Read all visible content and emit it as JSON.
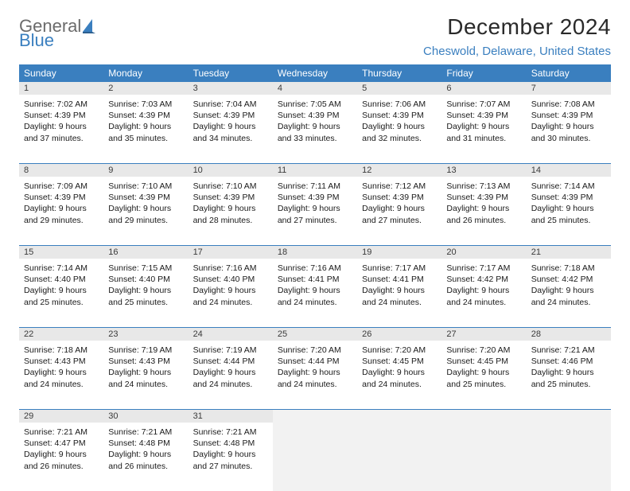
{
  "logo": {
    "line1": "General",
    "line2": "Blue"
  },
  "title": "December 2024",
  "location": "Cheswold, Delaware, United States",
  "weekdays": [
    "Sunday",
    "Monday",
    "Tuesday",
    "Wednesday",
    "Thursday",
    "Friday",
    "Saturday"
  ],
  "colors": {
    "header_bar": "#3a7fbf",
    "daynum_bg": "#e8e8e8",
    "empty_bg": "#f2f2f2",
    "text": "#1a1a1a",
    "logo_gray": "#6b6b6b",
    "logo_blue": "#3a7fbf"
  },
  "weeks": [
    [
      {
        "n": "1",
        "sunrise": "Sunrise: 7:02 AM",
        "sunset": "Sunset: 4:39 PM",
        "daylight": "Daylight: 9 hours and 37 minutes."
      },
      {
        "n": "2",
        "sunrise": "Sunrise: 7:03 AM",
        "sunset": "Sunset: 4:39 PM",
        "daylight": "Daylight: 9 hours and 35 minutes."
      },
      {
        "n": "3",
        "sunrise": "Sunrise: 7:04 AM",
        "sunset": "Sunset: 4:39 PM",
        "daylight": "Daylight: 9 hours and 34 minutes."
      },
      {
        "n": "4",
        "sunrise": "Sunrise: 7:05 AM",
        "sunset": "Sunset: 4:39 PM",
        "daylight": "Daylight: 9 hours and 33 minutes."
      },
      {
        "n": "5",
        "sunrise": "Sunrise: 7:06 AM",
        "sunset": "Sunset: 4:39 PM",
        "daylight": "Daylight: 9 hours and 32 minutes."
      },
      {
        "n": "6",
        "sunrise": "Sunrise: 7:07 AM",
        "sunset": "Sunset: 4:39 PM",
        "daylight": "Daylight: 9 hours and 31 minutes."
      },
      {
        "n": "7",
        "sunrise": "Sunrise: 7:08 AM",
        "sunset": "Sunset: 4:39 PM",
        "daylight": "Daylight: 9 hours and 30 minutes."
      }
    ],
    [
      {
        "n": "8",
        "sunrise": "Sunrise: 7:09 AM",
        "sunset": "Sunset: 4:39 PM",
        "daylight": "Daylight: 9 hours and 29 minutes."
      },
      {
        "n": "9",
        "sunrise": "Sunrise: 7:10 AM",
        "sunset": "Sunset: 4:39 PM",
        "daylight": "Daylight: 9 hours and 29 minutes."
      },
      {
        "n": "10",
        "sunrise": "Sunrise: 7:10 AM",
        "sunset": "Sunset: 4:39 PM",
        "daylight": "Daylight: 9 hours and 28 minutes."
      },
      {
        "n": "11",
        "sunrise": "Sunrise: 7:11 AM",
        "sunset": "Sunset: 4:39 PM",
        "daylight": "Daylight: 9 hours and 27 minutes."
      },
      {
        "n": "12",
        "sunrise": "Sunrise: 7:12 AM",
        "sunset": "Sunset: 4:39 PM",
        "daylight": "Daylight: 9 hours and 27 minutes."
      },
      {
        "n": "13",
        "sunrise": "Sunrise: 7:13 AM",
        "sunset": "Sunset: 4:39 PM",
        "daylight": "Daylight: 9 hours and 26 minutes."
      },
      {
        "n": "14",
        "sunrise": "Sunrise: 7:14 AM",
        "sunset": "Sunset: 4:39 PM",
        "daylight": "Daylight: 9 hours and 25 minutes."
      }
    ],
    [
      {
        "n": "15",
        "sunrise": "Sunrise: 7:14 AM",
        "sunset": "Sunset: 4:40 PM",
        "daylight": "Daylight: 9 hours and 25 minutes."
      },
      {
        "n": "16",
        "sunrise": "Sunrise: 7:15 AM",
        "sunset": "Sunset: 4:40 PM",
        "daylight": "Daylight: 9 hours and 25 minutes."
      },
      {
        "n": "17",
        "sunrise": "Sunrise: 7:16 AM",
        "sunset": "Sunset: 4:40 PM",
        "daylight": "Daylight: 9 hours and 24 minutes."
      },
      {
        "n": "18",
        "sunrise": "Sunrise: 7:16 AM",
        "sunset": "Sunset: 4:41 PM",
        "daylight": "Daylight: 9 hours and 24 minutes."
      },
      {
        "n": "19",
        "sunrise": "Sunrise: 7:17 AM",
        "sunset": "Sunset: 4:41 PM",
        "daylight": "Daylight: 9 hours and 24 minutes."
      },
      {
        "n": "20",
        "sunrise": "Sunrise: 7:17 AM",
        "sunset": "Sunset: 4:42 PM",
        "daylight": "Daylight: 9 hours and 24 minutes."
      },
      {
        "n": "21",
        "sunrise": "Sunrise: 7:18 AM",
        "sunset": "Sunset: 4:42 PM",
        "daylight": "Daylight: 9 hours and 24 minutes."
      }
    ],
    [
      {
        "n": "22",
        "sunrise": "Sunrise: 7:18 AM",
        "sunset": "Sunset: 4:43 PM",
        "daylight": "Daylight: 9 hours and 24 minutes."
      },
      {
        "n": "23",
        "sunrise": "Sunrise: 7:19 AM",
        "sunset": "Sunset: 4:43 PM",
        "daylight": "Daylight: 9 hours and 24 minutes."
      },
      {
        "n": "24",
        "sunrise": "Sunrise: 7:19 AM",
        "sunset": "Sunset: 4:44 PM",
        "daylight": "Daylight: 9 hours and 24 minutes."
      },
      {
        "n": "25",
        "sunrise": "Sunrise: 7:20 AM",
        "sunset": "Sunset: 4:44 PM",
        "daylight": "Daylight: 9 hours and 24 minutes."
      },
      {
        "n": "26",
        "sunrise": "Sunrise: 7:20 AM",
        "sunset": "Sunset: 4:45 PM",
        "daylight": "Daylight: 9 hours and 24 minutes."
      },
      {
        "n": "27",
        "sunrise": "Sunrise: 7:20 AM",
        "sunset": "Sunset: 4:45 PM",
        "daylight": "Daylight: 9 hours and 25 minutes."
      },
      {
        "n": "28",
        "sunrise": "Sunrise: 7:21 AM",
        "sunset": "Sunset: 4:46 PM",
        "daylight": "Daylight: 9 hours and 25 minutes."
      }
    ],
    [
      {
        "n": "29",
        "sunrise": "Sunrise: 7:21 AM",
        "sunset": "Sunset: 4:47 PM",
        "daylight": "Daylight: 9 hours and 26 minutes."
      },
      {
        "n": "30",
        "sunrise": "Sunrise: 7:21 AM",
        "sunset": "Sunset: 4:48 PM",
        "daylight": "Daylight: 9 hours and 26 minutes."
      },
      {
        "n": "31",
        "sunrise": "Sunrise: 7:21 AM",
        "sunset": "Sunset: 4:48 PM",
        "daylight": "Daylight: 9 hours and 27 minutes."
      },
      {
        "empty": true
      },
      {
        "empty": true
      },
      {
        "empty": true
      },
      {
        "empty": true
      }
    ]
  ]
}
